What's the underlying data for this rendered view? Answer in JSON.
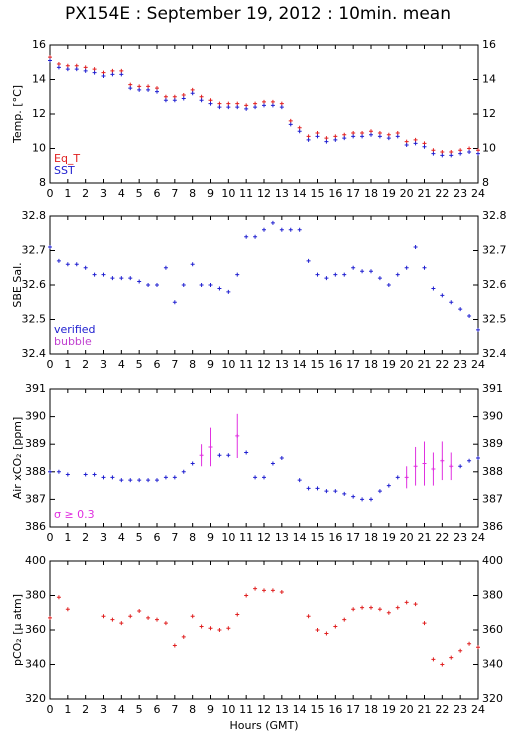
{
  "title": "PX154E : September 19, 2012 : 10min. mean",
  "chart_data": [
    {
      "type": "scatter",
      "ylabel": "Temp. [°C]",
      "xlim": [
        0,
        24
      ],
      "xticks": [
        0,
        1,
        2,
        3,
        4,
        5,
        6,
        7,
        8,
        9,
        10,
        11,
        12,
        13,
        14,
        15,
        16,
        17,
        18,
        19,
        20,
        21,
        22,
        23,
        24
      ],
      "ylim": [
        8,
        16
      ],
      "yticks": [
        8,
        10,
        12,
        14,
        16
      ],
      "x": [
        0,
        0.5,
        1,
        1.5,
        2,
        2.5,
        3,
        3.5,
        4,
        4.5,
        5,
        5.5,
        6,
        6.5,
        7,
        7.5,
        8,
        8.5,
        9,
        9.5,
        10,
        10.5,
        11,
        11.5,
        12,
        12.5,
        13,
        13.5,
        14,
        14.5,
        15,
        15.5,
        16,
        16.5,
        17,
        17.5,
        18,
        18.5,
        19,
        19.5,
        20,
        20.5,
        21,
        21.5,
        22,
        22.5,
        23,
        23.5,
        24
      ],
      "series": [
        {
          "name": "Eq_T",
          "color": "#e02020",
          "values": [
            15.3,
            14.9,
            14.8,
            14.8,
            14.7,
            14.6,
            14.4,
            14.5,
            14.5,
            13.7,
            13.6,
            13.6,
            13.5,
            13.0,
            13.0,
            13.1,
            13.4,
            13.0,
            12.8,
            12.6,
            12.6,
            12.6,
            12.5,
            12.6,
            12.7,
            12.7,
            12.6,
            11.6,
            11.2,
            10.7,
            10.9,
            10.6,
            10.7,
            10.8,
            10.9,
            10.9,
            11.0,
            10.9,
            10.8,
            10.9,
            10.4,
            10.5,
            10.3,
            9.9,
            9.8,
            9.8,
            9.9,
            10.0,
            9.9
          ]
        },
        {
          "name": "SST",
          "color": "#2020d0",
          "values": [
            15.1,
            14.7,
            14.6,
            14.6,
            14.5,
            14.4,
            14.2,
            14.3,
            14.3,
            13.5,
            13.4,
            13.4,
            13.3,
            12.8,
            12.8,
            12.9,
            13.2,
            12.8,
            12.6,
            12.4,
            12.4,
            12.4,
            12.3,
            12.4,
            12.5,
            12.5,
            12.4,
            11.4,
            11.0,
            10.5,
            10.7,
            10.4,
            10.5,
            10.6,
            10.7,
            10.7,
            10.8,
            10.7,
            10.6,
            10.7,
            10.2,
            10.3,
            10.1,
            9.7,
            9.6,
            9.6,
            9.7,
            9.8,
            9.7
          ]
        }
      ]
    },
    {
      "type": "scatter",
      "ylabel": "SBE Sal.",
      "xlim": [
        0,
        24
      ],
      "xticks": [
        0,
        1,
        2,
        3,
        4,
        5,
        6,
        7,
        8,
        9,
        10,
        11,
        12,
        13,
        14,
        15,
        16,
        17,
        18,
        19,
        20,
        21,
        22,
        23,
        24
      ],
      "ylim": [
        32.4,
        32.8
      ],
      "yticks": [
        32.4,
        32.5,
        32.6,
        32.7,
        32.8
      ],
      "x": [
        0,
        0.5,
        1,
        1.5,
        2,
        2.5,
        3,
        3.5,
        4,
        4.5,
        5,
        5.5,
        6,
        6.5,
        7,
        7.5,
        8,
        8.5,
        9,
        9.5,
        10,
        10.5,
        11,
        11.5,
        12,
        12.5,
        13,
        13.5,
        14,
        14.5,
        15,
        15.5,
        16,
        16.5,
        17,
        17.5,
        18,
        18.5,
        19,
        19.5,
        20,
        20.5,
        21,
        21.5,
        22,
        22.5,
        23,
        23.5,
        24
      ],
      "series": [
        {
          "name": "verified",
          "color": "#2020d0",
          "values": [
            32.71,
            32.67,
            32.66,
            32.66,
            32.65,
            32.63,
            32.63,
            32.62,
            32.62,
            32.62,
            32.61,
            32.6,
            32.6,
            32.65,
            32.55,
            32.6,
            32.66,
            32.6,
            32.6,
            32.59,
            32.58,
            32.63,
            32.74,
            32.74,
            32.76,
            32.78,
            32.76,
            32.76,
            32.76,
            32.67,
            32.63,
            32.62,
            32.63,
            32.63,
            32.65,
            32.64,
            32.64,
            32.62,
            32.6,
            32.63,
            32.65,
            32.71,
            32.65,
            32.59,
            32.57,
            32.55,
            32.53,
            32.51,
            32.47
          ]
        },
        {
          "name": "bubble",
          "color": "#c040d0",
          "values": [
            null,
            null,
            null,
            null,
            null,
            null,
            null,
            null,
            null,
            null,
            null,
            null,
            null,
            null,
            null,
            null,
            null,
            null,
            null,
            null,
            null,
            null,
            null,
            null,
            null,
            null,
            null,
            null,
            null,
            null,
            null,
            null,
            null,
            null,
            null,
            null,
            null,
            null,
            null,
            null,
            null,
            null,
            null,
            null,
            null,
            null,
            null,
            null,
            null
          ]
        }
      ]
    },
    {
      "type": "scatter",
      "ylabel": "Air xCO₂ [ppm]",
      "xlim": [
        0,
        24
      ],
      "xticks": [
        0,
        1,
        2,
        3,
        4,
        5,
        6,
        7,
        8,
        9,
        10,
        11,
        12,
        13,
        14,
        15,
        16,
        17,
        18,
        19,
        20,
        21,
        22,
        23,
        24
      ],
      "ylim": [
        386,
        391
      ],
      "yticks": [
        386,
        387,
        388,
        389,
        390,
        391
      ],
      "x": [
        0,
        0.5,
        1,
        1.5,
        2,
        2.5,
        3,
        3.5,
        4,
        4.5,
        5,
        5.5,
        6,
        6.5,
        7,
        7.5,
        8,
        8.5,
        9,
        9.5,
        10,
        10.5,
        11,
        11.5,
        12,
        12.5,
        13,
        13.5,
        14,
        14.5,
        15,
        15.5,
        16,
        16.5,
        17,
        17.5,
        18,
        18.5,
        19,
        19.5,
        20,
        20.5,
        21,
        21.5,
        22,
        22.5,
        23,
        23.5,
        24
      ],
      "series": [
        {
          "color": "#2020d0",
          "values": [
            388.0,
            388.0,
            387.9,
            null,
            387.9,
            387.9,
            387.8,
            387.8,
            387.7,
            387.7,
            387.7,
            387.7,
            387.7,
            387.8,
            387.8,
            388.0,
            388.3,
            null,
            null,
            388.6,
            388.6,
            null,
            388.7,
            387.8,
            387.8,
            388.3,
            388.5,
            null,
            387.7,
            387.4,
            387.4,
            387.3,
            387.3,
            387.2,
            387.1,
            387.0,
            387.0,
            387.3,
            387.5,
            387.8,
            null,
            null,
            null,
            null,
            null,
            null,
            388.2,
            388.4,
            388.5
          ]
        },
        {
          "name": "σ ≥ 0.3",
          "color": "#e030e0",
          "values": [
            null,
            null,
            null,
            null,
            null,
            null,
            null,
            null,
            null,
            null,
            null,
            null,
            null,
            null,
            null,
            null,
            null,
            388.6,
            388.9,
            null,
            null,
            389.3,
            null,
            null,
            null,
            null,
            null,
            null,
            null,
            null,
            null,
            null,
            null,
            null,
            null,
            null,
            null,
            null,
            null,
            null,
            387.8,
            388.2,
            388.3,
            388.1,
            388.4,
            388.2,
            null,
            null,
            null
          ],
          "errors": [
            null,
            null,
            null,
            null,
            null,
            null,
            null,
            null,
            null,
            null,
            null,
            null,
            null,
            null,
            null,
            null,
            null,
            0.4,
            0.7,
            null,
            null,
            0.8,
            null,
            null,
            null,
            null,
            null,
            null,
            null,
            null,
            null,
            null,
            null,
            null,
            null,
            null,
            null,
            null,
            null,
            null,
            0.4,
            0.7,
            0.8,
            0.6,
            0.7,
            0.5,
            null,
            null,
            null
          ]
        }
      ]
    },
    {
      "type": "scatter",
      "ylabel": "pCO₂ [µ atm]",
      "xlabel": "Hours (GMT)",
      "xlim": [
        0,
        24
      ],
      "xticks": [
        0,
        1,
        2,
        3,
        4,
        5,
        6,
        7,
        8,
        9,
        10,
        11,
        12,
        13,
        14,
        15,
        16,
        17,
        18,
        19,
        20,
        21,
        22,
        23,
        24
      ],
      "ylim": [
        320,
        400
      ],
      "yticks": [
        320,
        340,
        360,
        380,
        400
      ],
      "x": [
        0,
        0.5,
        1,
        1.5,
        2,
        2.5,
        3,
        3.5,
        4,
        4.5,
        5,
        5.5,
        6,
        6.5,
        7,
        7.5,
        8,
        8.5,
        9,
        9.5,
        10,
        10.5,
        11,
        11.5,
        12,
        12.5,
        13,
        13.5,
        14,
        14.5,
        15,
        15.5,
        16,
        16.5,
        17,
        17.5,
        18,
        18.5,
        19,
        19.5,
        20,
        20.5,
        21,
        21.5,
        22,
        22.5,
        23,
        23.5,
        24
      ],
      "series": [
        {
          "color": "#e02020",
          "values": [
            367,
            379,
            372,
            null,
            null,
            null,
            368,
            366,
            364,
            368,
            371,
            367,
            366,
            364,
            351,
            356,
            368,
            362,
            361,
            360,
            361,
            369,
            380,
            384,
            383,
            383,
            382,
            null,
            null,
            368,
            360,
            358,
            362,
            366,
            372,
            373,
            373,
            372,
            370,
            373,
            376,
            375,
            364,
            343,
            340,
            344,
            348,
            352,
            350
          ]
        }
      ]
    }
  ]
}
